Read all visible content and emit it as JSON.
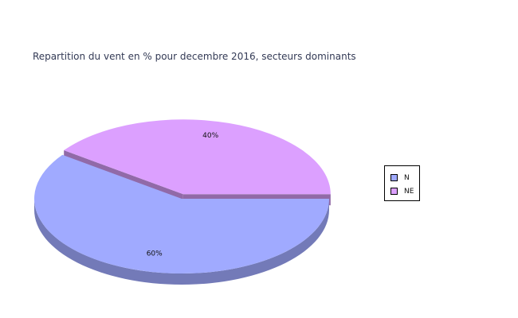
{
  "chart_data": {
    "type": "pie",
    "title": "Repartition du vent en % pour decembre 2016, secteurs dominants",
    "categories": [
      "N",
      "NE"
    ],
    "values": [
      60,
      40
    ],
    "value_labels": [
      "60%",
      "40%"
    ],
    "three_d": true,
    "exploded_slice": "NE",
    "legend_placement": "right",
    "colors": {
      "N": "#a0aaff",
      "NE": "#dca0ff"
    }
  }
}
